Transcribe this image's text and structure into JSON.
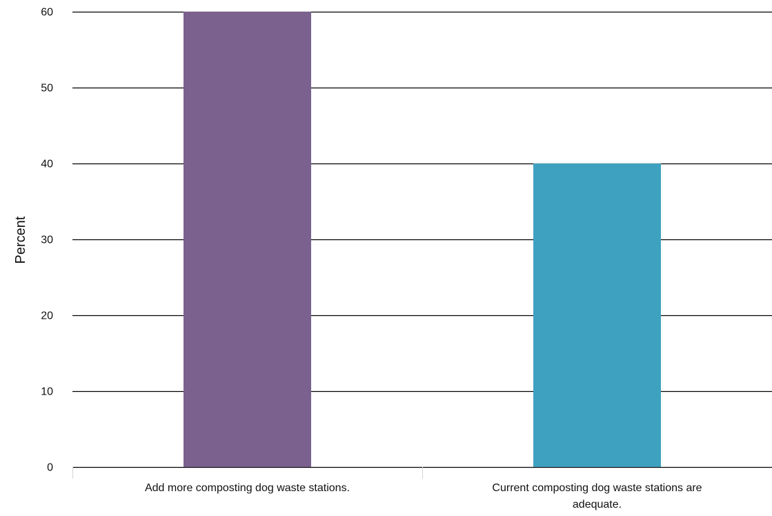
{
  "chart_data": {
    "type": "bar",
    "title": "",
    "xlabel": "",
    "ylabel": "Percent",
    "categories": [
      [
        "Add more composting dog waste stations."
      ],
      [
        "Current composting dog waste stations are",
        "adequate."
      ]
    ],
    "values": [
      60,
      40
    ],
    "colors": [
      "#7b618e",
      "#3fa1c0"
    ],
    "ylim": [
      0,
      60
    ],
    "yticks": [
      0,
      10,
      20,
      30,
      40,
      50,
      60
    ],
    "grid": true,
    "legend": "none"
  }
}
